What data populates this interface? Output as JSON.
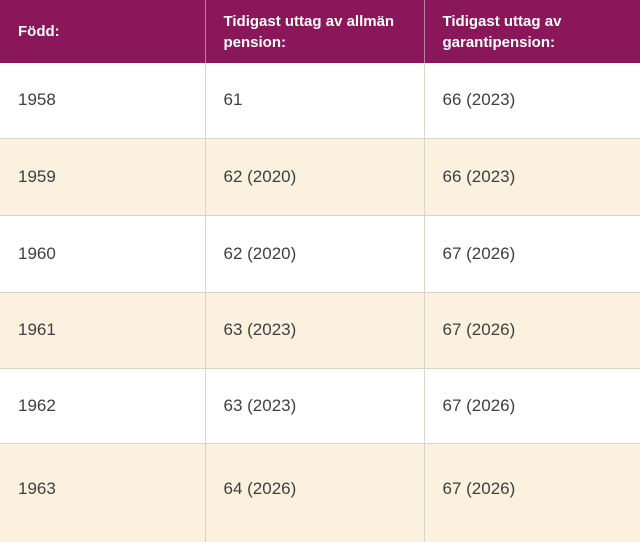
{
  "chart_data": {
    "type": "table",
    "columns": [
      "Född:",
      "Tidigast uttag av allmän pension:",
      "Tidigast uttag av garantipension:"
    ],
    "rows": [
      [
        "1958",
        "61",
        "66 (2023)"
      ],
      [
        "1959",
        "62 (2020)",
        "66 (2023)"
      ],
      [
        "1960",
        "62 (2020)",
        "67 (2026)"
      ],
      [
        "1961",
        "63 (2023)",
        "67 (2026)"
      ],
      [
        "1962",
        "63 (2023)",
        "67 (2026)"
      ],
      [
        "1963",
        "64 (2026)",
        "67 (2026)"
      ]
    ],
    "layout": {
      "zebra_striping": true,
      "header_position": "top"
    }
  },
  "colors": {
    "header_background": "#8A175A",
    "header_text": "#FFFFFF",
    "row_background": "#FFFFFF",
    "row_alt_background": "#FBF1DE",
    "body_text": "#3F3F3F",
    "grid_line": "#D9D5CC"
  }
}
